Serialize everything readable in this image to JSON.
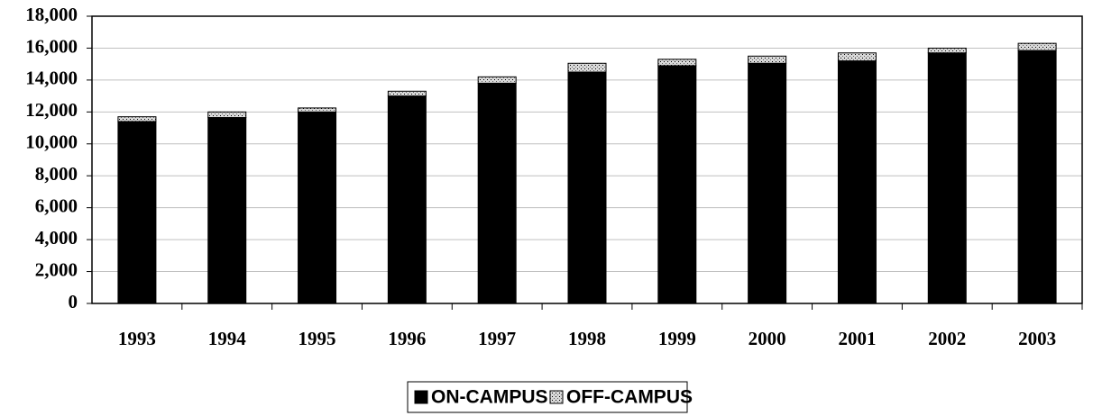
{
  "chart_data": {
    "type": "stacked_bar",
    "categories": [
      "1993",
      "1994",
      "1995",
      "1996",
      "1997",
      "1998",
      "1999",
      "2000",
      "2001",
      "2002",
      "2003"
    ],
    "series": [
      {
        "name": "ON-CAMPUS",
        "color": "#000000",
        "values": [
          11400,
          11650,
          12000,
          13000,
          13800,
          14500,
          14900,
          15050,
          15200,
          15700,
          15850
        ]
      },
      {
        "name": "OFF-CAMPUS",
        "color": "#d9d9d9",
        "values": [
          300,
          350,
          250,
          300,
          400,
          550,
          400,
          450,
          500,
          300,
          450
        ]
      }
    ],
    "ylim": [
      0,
      18000
    ],
    "yticks": [
      0,
      {
        "value": 2000,
        "label": "2,000"
      },
      {
        "value": 4000,
        "label": "4,000"
      },
      {
        "value": 6000,
        "label": "6,000"
      },
      {
        "value": 8000,
        "label": "8,000"
      },
      {
        "value": 10000,
        "label": "10,000"
      },
      {
        "value": 12000,
        "label": "12,000"
      },
      {
        "value": 14000,
        "label": "14,000"
      },
      {
        "value": 16000,
        "label": "16,000"
      },
      {
        "value": 18000,
        "label": "18,000"
      }
    ],
    "grid": true,
    "legend": "bottom"
  }
}
